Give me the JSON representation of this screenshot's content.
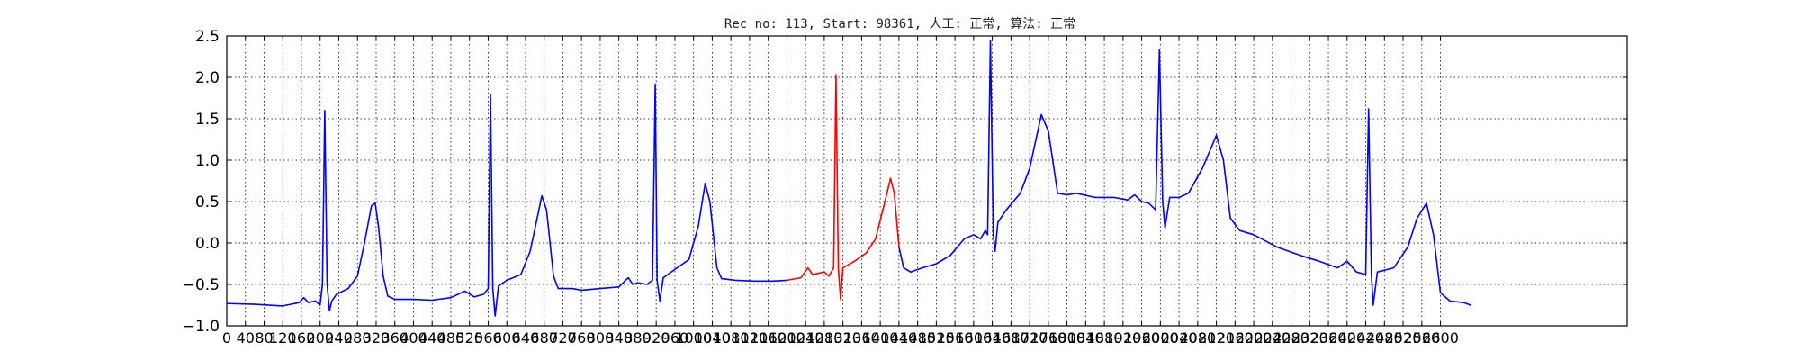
{
  "chart_data": {
    "type": "line",
    "title": "Rec_no: 113, Start: 98361, 人工: 正常, 算法: 正常",
    "xlabel": "",
    "ylabel": "",
    "xlim": [
      0,
      3000
    ],
    "ylim": [
      -1.0,
      2.5
    ],
    "grid": true,
    "yticks": [
      "−1.0",
      "−0.5",
      "0.0",
      "0.5",
      "1.0",
      "1.5",
      "2.0",
      "2.5"
    ],
    "ytick_values": [
      -1.0,
      -0.5,
      0.0,
      0.5,
      1.0,
      1.5,
      2.0,
      2.5
    ],
    "xtick_values": [
      0,
      40,
      80,
      120,
      160,
      200,
      240,
      280,
      320,
      360,
      400,
      440,
      480,
      520,
      560,
      600,
      640,
      680,
      720,
      760,
      800,
      840,
      880,
      920,
      960,
      1000,
      1040,
      1080,
      1120,
      1160,
      1200,
      1240,
      1280,
      1320,
      1360,
      1400,
      1440,
      1480,
      1520,
      1560,
      1600,
      1640,
      1680,
      1720,
      1760,
      1800,
      1840,
      1880,
      1920,
      1960,
      2000,
      2040,
      2080,
      2120,
      2160,
      2200,
      2240,
      2280,
      2320,
      2360,
      2400,
      2440,
      2480,
      2520,
      2560,
      2600
    ],
    "series": [
      {
        "color": "#0000ff",
        "points": [
          [
            0,
            -0.73
          ],
          [
            60,
            -0.74
          ],
          [
            120,
            -0.76
          ],
          [
            155,
            -0.72
          ],
          [
            165,
            -0.66
          ],
          [
            175,
            -0.72
          ],
          [
            190,
            -0.7
          ],
          [
            200,
            -0.75
          ],
          [
            205,
            -0.5
          ],
          [
            210,
            1.6
          ],
          [
            215,
            -0.5
          ],
          [
            220,
            -0.82
          ],
          [
            225,
            -0.7
          ],
          [
            235,
            -0.62
          ],
          [
            260,
            -0.55
          ],
          [
            280,
            -0.4
          ],
          [
            295,
            0.0
          ],
          [
            310,
            0.45
          ],
          [
            318,
            0.48
          ],
          [
            325,
            0.2
          ],
          [
            335,
            -0.4
          ],
          [
            345,
            -0.64
          ],
          [
            360,
            -0.68
          ],
          [
            400,
            -0.68
          ],
          [
            440,
            -0.69
          ],
          [
            480,
            -0.66
          ],
          [
            510,
            -0.58
          ],
          [
            530,
            -0.65
          ],
          [
            550,
            -0.62
          ],
          [
            560,
            -0.55
          ],
          [
            565,
            1.8
          ],
          [
            570,
            -0.55
          ],
          [
            575,
            -0.88
          ],
          [
            582,
            -0.52
          ],
          [
            600,
            -0.45
          ],
          [
            630,
            -0.38
          ],
          [
            650,
            -0.1
          ],
          [
            665,
            0.3
          ],
          [
            675,
            0.57
          ],
          [
            685,
            0.4
          ],
          [
            700,
            -0.4
          ],
          [
            710,
            -0.55
          ],
          [
            740,
            -0.55
          ],
          [
            760,
            -0.57
          ],
          [
            800,
            -0.55
          ],
          [
            840,
            -0.53
          ],
          [
            860,
            -0.42
          ],
          [
            870,
            -0.5
          ],
          [
            880,
            -0.48
          ],
          [
            900,
            -0.5
          ],
          [
            912,
            -0.45
          ],
          [
            918,
            1.92
          ],
          [
            922,
            -0.45
          ],
          [
            928,
            -0.7
          ],
          [
            935,
            -0.42
          ],
          [
            960,
            -0.32
          ],
          [
            990,
            -0.2
          ],
          [
            1010,
            0.2
          ],
          [
            1025,
            0.72
          ],
          [
            1035,
            0.5
          ],
          [
            1050,
            -0.3
          ],
          [
            1060,
            -0.43
          ],
          [
            1090,
            -0.45
          ],
          [
            1130,
            -0.46
          ],
          [
            1170,
            -0.46
          ],
          [
            1200,
            -0.45
          ]
        ]
      },
      {
        "color": "#ff0000",
        "points": [
          [
            1200,
            -0.45
          ],
          [
            1230,
            -0.42
          ],
          [
            1245,
            -0.3
          ],
          [
            1255,
            -0.38
          ],
          [
            1280,
            -0.35
          ],
          [
            1290,
            -0.4
          ],
          [
            1300,
            -0.3
          ],
          [
            1305,
            2.03
          ],
          [
            1310,
            -0.3
          ],
          [
            1315,
            -0.68
          ],
          [
            1320,
            -0.3
          ],
          [
            1345,
            -0.22
          ],
          [
            1370,
            -0.12
          ],
          [
            1390,
            0.05
          ],
          [
            1410,
            0.5
          ],
          [
            1422,
            0.78
          ],
          [
            1430,
            0.6
          ],
          [
            1440,
            -0.05
          ]
        ]
      },
      {
        "color": "#0000ff",
        "points": [
          [
            1440,
            -0.05
          ],
          [
            1450,
            -0.3
          ],
          [
            1465,
            -0.35
          ],
          [
            1490,
            -0.3
          ],
          [
            1520,
            -0.25
          ],
          [
            1550,
            -0.15
          ],
          [
            1580,
            0.05
          ],
          [
            1600,
            0.1
          ],
          [
            1615,
            0.05
          ],
          [
            1625,
            0.15
          ],
          [
            1630,
            0.1
          ],
          [
            1636,
            2.45
          ],
          [
            1642,
            0.1
          ],
          [
            1646,
            -0.1
          ],
          [
            1652,
            0.25
          ],
          [
            1670,
            0.4
          ],
          [
            1700,
            0.6
          ],
          [
            1720,
            0.9
          ],
          [
            1745,
            1.55
          ],
          [
            1760,
            1.35
          ],
          [
            1780,
            0.6
          ],
          [
            1800,
            0.58
          ],
          [
            1820,
            0.6
          ],
          [
            1860,
            0.55
          ],
          [
            1900,
            0.55
          ],
          [
            1930,
            0.52
          ],
          [
            1945,
            0.58
          ],
          [
            1960,
            0.5
          ],
          [
            1975,
            0.48
          ],
          [
            1990,
            0.4
          ],
          [
            1998,
            2.33
          ],
          [
            2005,
            0.5
          ],
          [
            2010,
            0.18
          ],
          [
            2020,
            0.55
          ],
          [
            2040,
            0.55
          ],
          [
            2060,
            0.6
          ],
          [
            2090,
            0.9
          ],
          [
            2120,
            1.3
          ],
          [
            2135,
            1.0
          ],
          [
            2150,
            0.3
          ],
          [
            2170,
            0.15
          ],
          [
            2200,
            0.1
          ],
          [
            2250,
            -0.05
          ],
          [
            2300,
            -0.15
          ],
          [
            2340,
            -0.22
          ],
          [
            2380,
            -0.3
          ],
          [
            2400,
            -0.22
          ],
          [
            2420,
            -0.35
          ],
          [
            2440,
            -0.38
          ],
          [
            2446,
            1.62
          ],
          [
            2452,
            -0.38
          ],
          [
            2456,
            -0.75
          ],
          [
            2465,
            -0.35
          ],
          [
            2500,
            -0.3
          ],
          [
            2530,
            -0.05
          ],
          [
            2550,
            0.3
          ],
          [
            2570,
            0.48
          ],
          [
            2585,
            0.1
          ],
          [
            2600,
            -0.6
          ],
          [
            2620,
            -0.7
          ],
          [
            2650,
            -0.72
          ],
          [
            2665,
            -0.75
          ]
        ]
      }
    ]
  }
}
